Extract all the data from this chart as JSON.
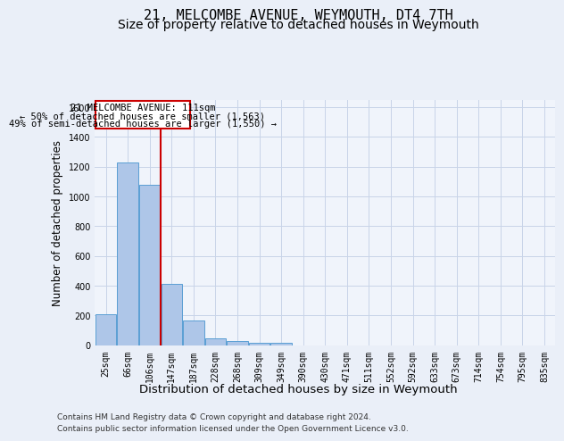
{
  "title": "21, MELCOMBE AVENUE, WEYMOUTH, DT4 7TH",
  "subtitle": "Size of property relative to detached houses in Weymouth",
  "xlabel": "Distribution of detached houses by size in Weymouth",
  "ylabel": "Number of detached properties",
  "footer_line1": "Contains HM Land Registry data © Crown copyright and database right 2024.",
  "footer_line2": "Contains public sector information licensed under the Open Government Licence v3.0.",
  "bar_labels": [
    "25sqm",
    "66sqm",
    "106sqm",
    "147sqm",
    "187sqm",
    "228sqm",
    "268sqm",
    "309sqm",
    "349sqm",
    "390sqm",
    "430sqm",
    "471sqm",
    "511sqm",
    "552sqm",
    "592sqm",
    "633sqm",
    "673sqm",
    "714sqm",
    "754sqm",
    "795sqm",
    "835sqm"
  ],
  "bar_values": [
    205,
    1225,
    1075,
    410,
    165,
    45,
    28,
    18,
    14,
    0,
    0,
    0,
    0,
    0,
    0,
    0,
    0,
    0,
    0,
    0,
    0
  ],
  "bar_color": "#aec6e8",
  "bar_edge_color": "#5a9fd4",
  "vline_x": 2.5,
  "vline_color": "#cc0000",
  "annotation_line1": "21 MELCOMBE AVENUE: 111sqm",
  "annotation_line2": "← 50% of detached houses are smaller (1,563)",
  "annotation_line3": "49% of semi-detached houses are larger (1,550) →",
  "ylim": [
    0,
    1650
  ],
  "yticks": [
    0,
    200,
    400,
    600,
    800,
    1000,
    1200,
    1400,
    1600
  ],
  "bg_color": "#eaeff8",
  "plot_bg_color": "#f0f4fb",
  "grid_color": "#c8d4e8",
  "title_fontsize": 11,
  "subtitle_fontsize": 10,
  "tick_fontsize": 7,
  "ylabel_fontsize": 8.5,
  "xlabel_fontsize": 9.5,
  "footer_fontsize": 6.5
}
